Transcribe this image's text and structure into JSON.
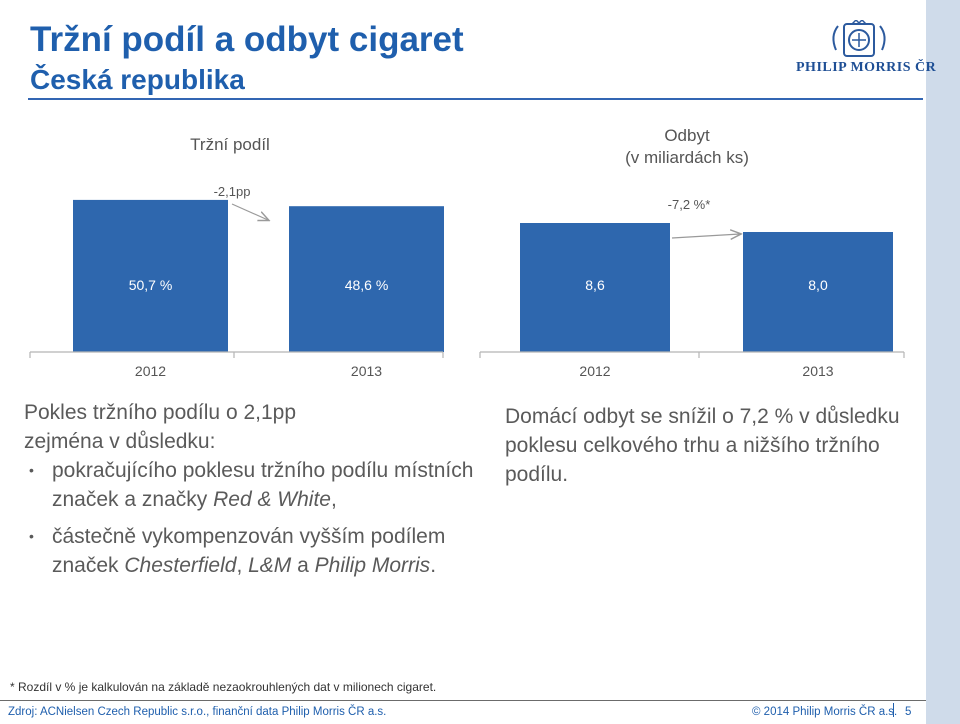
{
  "header": {
    "title": "Tržní podíl a odbyt cigaret",
    "subtitle": "Česká republika",
    "logo_text": "PHILIP MORRIS ČR"
  },
  "colors": {
    "bar": "#2e67ae",
    "title": "#1f5fad",
    "text": "#5a5a5a",
    "arrow": "#9a9a9a",
    "band": "#cfdbea"
  },
  "chart_data": [
    {
      "type": "bar",
      "title": "Tržní podíl",
      "categories": [
        "2012",
        "2013"
      ],
      "values": [
        50.7,
        48.6
      ],
      "value_labels": [
        "50,7 %",
        "48,6 %"
      ],
      "change_label": "-2,1pp"
    },
    {
      "type": "bar",
      "title": "Odbyt",
      "subtitle": "(v miliardách ks)",
      "categories": [
        "2012",
        "2013"
      ],
      "values": [
        8.6,
        8.0
      ],
      "value_labels": [
        "8,6",
        "8,0"
      ],
      "change_label": "-7,2 %*"
    }
  ],
  "left_text": {
    "heading_line1": "Pokles tržního podílu o 2,1pp",
    "heading_line2": "zejména v důsledku:",
    "bullet1_part1": "pokračujícího poklesu tržního podílu místních značek a značky ",
    "bullet1_italic": "Red & White",
    "bullet1_end": ",",
    "bullet2_part1": "částečně vykompenzován vyšším podílem značek ",
    "bullet2_italic1": "Chesterfield",
    "bullet2_mid": ", ",
    "bullet2_italic2": "L&M",
    "bullet2_mid2": " a ",
    "bullet2_italic3": "Philip Morris",
    "bullet2_end": "."
  },
  "right_text": "Domácí odbyt se snížil o 7,2 % v důsledku poklesu celkového trhu a nižšího tržního podílu.",
  "footer": {
    "footnote": "* Rozdíl v % je kalkulován na základě nezaokrouhlených dat v milionech cigaret.",
    "source": "Zdroj: ACNielsen Czech Republic s.r.o., finanční data Philip Morris ČR a.s.",
    "copyright": "© 2014 Philip Morris ČR a.s.",
    "page": "5"
  }
}
